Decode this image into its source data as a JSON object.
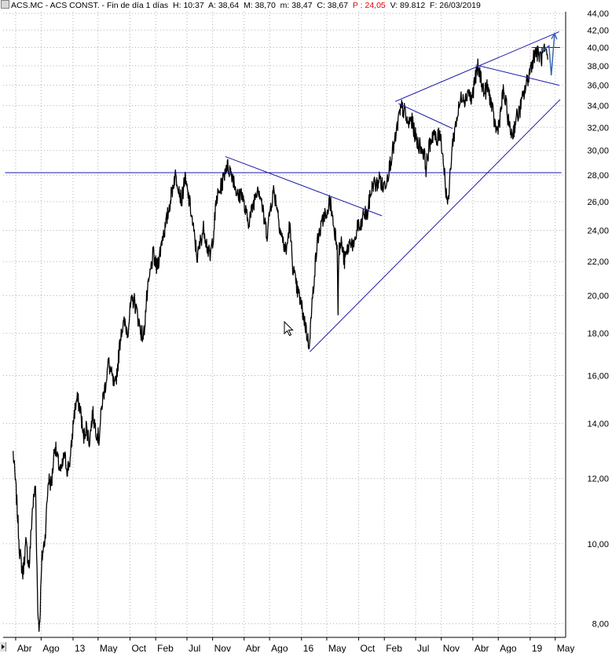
{
  "header": {
    "symbol": "ACS.MC",
    "name": "ACS CONST.",
    "period": "Fin de día 1 días",
    "h": "H: 10:37",
    "a": "A: 38,64",
    "m": "M: 38,70",
    "min": "m: 38,47",
    "c": "C: 38,67",
    "p": "P : 24,05",
    "v": "V: 89.812",
    "f": "F: 26/03/2019"
  },
  "chart_data": {
    "type": "line",
    "title": "ACS.MC - ACS CONST. - Fin de día 1 días",
    "scale": "log",
    "ylim": [
      7.7,
      44.2
    ],
    "y_ticks": [
      8,
      10,
      12,
      14,
      16,
      18,
      20,
      22,
      24,
      26,
      28,
      30,
      32,
      34,
      36,
      38,
      40,
      42,
      44
    ],
    "y_tick_labels": [
      "8,00",
      "10,00",
      "12,00",
      "14,00",
      "16,00",
      "18,00",
      "20,00",
      "22,00",
      "24,00",
      "26,00",
      "28,00",
      "30,00",
      "32,00",
      "34,00",
      "36,00",
      "38,00",
      "40,00",
      "42,00",
      "44,00"
    ],
    "x_tick_labels": [
      "Abr",
      "Ago",
      "13",
      "May",
      "Oct",
      "Feb",
      "Jul",
      "Nov",
      "Abr",
      "Ago",
      "16",
      "May",
      "Oct",
      "Feb",
      "Jul",
      "Nov",
      "Abr",
      "Ago",
      "19",
      "May"
    ],
    "x_tick_dates": [
      "2012-04-01",
      "2012-08-01",
      "2013-01-01",
      "2013-05-01",
      "2013-10-01",
      "2014-02-01",
      "2014-07-01",
      "2014-11-01",
      "2015-04-01",
      "2015-08-01",
      "2016-01-01",
      "2016-05-01",
      "2016-10-01",
      "2017-02-01",
      "2017-07-01",
      "2017-11-01",
      "2018-04-01",
      "2018-08-01",
      "2019-01-01",
      "2019-05-01"
    ],
    "grid": true,
    "series": [
      {
        "name": "ACS.MC",
        "color": "#000000",
        "points": [
          [
            "2012-03-20",
            12.9
          ],
          [
            "2012-04-05",
            11.4
          ],
          [
            "2012-04-20",
            9.8
          ],
          [
            "2012-05-05",
            9.2
          ],
          [
            "2012-05-20",
            10.0
          ],
          [
            "2012-06-05",
            9.4
          ],
          [
            "2012-06-20",
            11.0
          ],
          [
            "2012-07-05",
            11.8
          ],
          [
            "2012-07-16",
            8.3
          ],
          [
            "2012-07-24",
            7.9
          ],
          [
            "2012-08-05",
            9.6
          ],
          [
            "2012-08-20",
            10.2
          ],
          [
            "2012-09-05",
            12.0
          ],
          [
            "2012-09-20",
            11.8
          ],
          [
            "2012-10-05",
            13.2
          ],
          [
            "2012-10-20",
            12.6
          ],
          [
            "2012-11-05",
            12.2
          ],
          [
            "2012-11-20",
            12.8
          ],
          [
            "2012-12-05",
            12.3
          ],
          [
            "2012-12-20",
            12.7
          ],
          [
            "2013-01-05",
            14.3
          ],
          [
            "2013-01-20",
            15.0
          ],
          [
            "2013-02-05",
            14.6
          ],
          [
            "2013-02-20",
            13.4
          ],
          [
            "2013-03-05",
            13.9
          ],
          [
            "2013-03-20",
            13.3
          ],
          [
            "2013-04-05",
            14.4
          ],
          [
            "2013-04-20",
            13.8
          ],
          [
            "2013-05-05",
            13.4
          ],
          [
            "2013-05-20",
            14.8
          ],
          [
            "2013-06-05",
            15.6
          ],
          [
            "2013-06-20",
            16.6
          ],
          [
            "2013-07-05",
            16.0
          ],
          [
            "2013-07-20",
            15.4
          ],
          [
            "2013-08-05",
            16.6
          ],
          [
            "2013-08-20",
            18.2
          ],
          [
            "2013-09-05",
            18.5
          ],
          [
            "2013-09-20",
            18.1
          ],
          [
            "2013-10-05",
            19.5
          ],
          [
            "2013-10-20",
            19.8
          ],
          [
            "2013-11-05",
            19.0
          ],
          [
            "2013-11-20",
            18.2
          ],
          [
            "2013-12-05",
            17.8
          ],
          [
            "2013-12-20",
            19.8
          ],
          [
            "2014-01-05",
            21.2
          ],
          [
            "2014-01-20",
            22.5
          ],
          [
            "2014-02-05",
            21.6
          ],
          [
            "2014-02-20",
            22.4
          ],
          [
            "2014-03-05",
            23.6
          ],
          [
            "2014-03-20",
            24.2
          ],
          [
            "2014-04-05",
            25.5
          ],
          [
            "2014-04-20",
            26.8
          ],
          [
            "2014-05-05",
            28.0
          ],
          [
            "2014-05-20",
            27.4
          ],
          [
            "2014-06-05",
            26.0
          ],
          [
            "2014-06-20",
            27.8
          ],
          [
            "2014-07-05",
            26.6
          ],
          [
            "2014-07-20",
            25.4
          ],
          [
            "2014-08-05",
            23.6
          ],
          [
            "2014-08-20",
            22.2
          ],
          [
            "2014-09-05",
            23.4
          ],
          [
            "2014-09-20",
            24.2
          ],
          [
            "2014-10-05",
            23.0
          ],
          [
            "2014-10-20",
            22.2
          ],
          [
            "2014-11-05",
            23.8
          ],
          [
            "2014-11-20",
            26.2
          ],
          [
            "2014-12-05",
            26.8
          ],
          [
            "2014-12-20",
            27.6
          ],
          [
            "2015-01-05",
            28.8
          ],
          [
            "2015-01-20",
            28.5
          ],
          [
            "2015-02-05",
            28.0
          ],
          [
            "2015-02-20",
            27.0
          ],
          [
            "2015-03-05",
            26.2
          ],
          [
            "2015-03-20",
            26.8
          ],
          [
            "2015-04-05",
            25.4
          ],
          [
            "2015-04-20",
            24.6
          ],
          [
            "2015-05-05",
            25.2
          ],
          [
            "2015-05-20",
            26.2
          ],
          [
            "2015-06-05",
            27.2
          ],
          [
            "2015-06-20",
            26.4
          ],
          [
            "2015-07-05",
            24.8
          ],
          [
            "2015-07-20",
            23.8
          ],
          [
            "2015-08-05",
            25.6
          ],
          [
            "2015-08-20",
            26.8
          ],
          [
            "2015-09-05",
            25.8
          ],
          [
            "2015-09-20",
            24.2
          ],
          [
            "2015-10-05",
            23.2
          ],
          [
            "2015-10-20",
            22.6
          ],
          [
            "2015-11-05",
            24.4
          ],
          [
            "2015-11-20",
            21.8
          ],
          [
            "2015-12-05",
            20.6
          ],
          [
            "2015-12-20",
            20.0
          ],
          [
            "2016-01-05",
            19.2
          ],
          [
            "2016-01-20",
            18.4
          ],
          [
            "2016-02-05",
            17.4
          ],
          [
            "2016-02-15",
            18.6
          ],
          [
            "2016-02-25",
            20.2
          ],
          [
            "2016-03-05",
            21.6
          ],
          [
            "2016-03-20",
            23.6
          ],
          [
            "2016-04-05",
            24.2
          ],
          [
            "2016-04-20",
            25.2
          ],
          [
            "2016-05-01",
            24.6
          ],
          [
            "2016-05-10",
            26.0
          ],
          [
            "2016-05-20",
            25.8
          ],
          [
            "2016-06-05",
            24.2
          ],
          [
            "2016-06-20",
            23.2
          ],
          [
            "2016-06-24",
            19.4
          ],
          [
            "2016-06-28",
            22.6
          ],
          [
            "2016-07-10",
            23.2
          ],
          [
            "2016-07-25",
            22.0
          ],
          [
            "2016-08-10",
            22.8
          ],
          [
            "2016-08-25",
            23.4
          ],
          [
            "2016-09-10",
            22.8
          ],
          [
            "2016-09-25",
            24.4
          ],
          [
            "2016-10-10",
            24.0
          ],
          [
            "2016-10-25",
            25.2
          ],
          [
            "2016-11-10",
            25.0
          ],
          [
            "2016-11-25",
            26.4
          ],
          [
            "2016-12-10",
            27.4
          ],
          [
            "2016-12-25",
            27.2
          ],
          [
            "2017-01-10",
            27.8
          ],
          [
            "2017-01-25",
            27.0
          ],
          [
            "2017-02-10",
            27.6
          ],
          [
            "2017-02-25",
            28.6
          ],
          [
            "2017-03-10",
            29.8
          ],
          [
            "2017-03-25",
            30.8
          ],
          [
            "2017-04-10",
            32.8
          ],
          [
            "2017-04-25",
            33.8
          ],
          [
            "2017-05-10",
            33.4
          ],
          [
            "2017-05-25",
            32.2
          ],
          [
            "2017-06-10",
            32.8
          ],
          [
            "2017-06-25",
            31.6
          ],
          [
            "2017-07-10",
            30.6
          ],
          [
            "2017-07-25",
            30.4
          ],
          [
            "2017-08-10",
            29.8
          ],
          [
            "2017-08-20",
            28.6
          ],
          [
            "2017-08-30",
            29.8
          ],
          [
            "2017-09-10",
            30.8
          ],
          [
            "2017-09-25",
            31.6
          ],
          [
            "2017-10-10",
            30.6
          ],
          [
            "2017-10-25",
            31.8
          ],
          [
            "2017-11-05",
            30.2
          ],
          [
            "2017-11-15",
            28.4
          ],
          [
            "2017-11-25",
            26.6
          ],
          [
            "2017-12-05",
            25.8
          ],
          [
            "2017-12-15",
            28.6
          ],
          [
            "2017-12-25",
            30.6
          ],
          [
            "2018-01-10",
            32.4
          ],
          [
            "2018-01-25",
            33.8
          ],
          [
            "2018-02-10",
            35.2
          ],
          [
            "2018-02-25",
            34.6
          ],
          [
            "2018-03-10",
            35.6
          ],
          [
            "2018-03-25",
            34.4
          ],
          [
            "2018-04-10",
            36.4
          ],
          [
            "2018-04-25",
            37.8
          ],
          [
            "2018-05-10",
            36.8
          ],
          [
            "2018-05-25",
            35.2
          ],
          [
            "2018-06-10",
            35.8
          ],
          [
            "2018-06-25",
            34.6
          ],
          [
            "2018-07-10",
            32.8
          ],
          [
            "2018-07-25",
            31.6
          ],
          [
            "2018-08-10",
            33.0
          ],
          [
            "2018-08-25",
            35.4
          ],
          [
            "2018-09-10",
            33.8
          ],
          [
            "2018-09-25",
            31.8
          ],
          [
            "2018-10-10",
            31.4
          ],
          [
            "2018-10-25",
            32.8
          ],
          [
            "2018-11-10",
            33.4
          ],
          [
            "2018-11-25",
            34.6
          ],
          [
            "2018-12-10",
            35.8
          ],
          [
            "2018-12-25",
            37.0
          ],
          [
            "2019-01-10",
            38.4
          ],
          [
            "2019-01-25",
            39.6
          ],
          [
            "2019-02-10",
            39.2
          ],
          [
            "2019-02-25",
            38.9
          ],
          [
            "2019-03-10",
            39.5
          ],
          [
            "2019-03-26",
            38.67
          ]
        ]
      }
    ],
    "trendlines": [
      {
        "from": [
          "2012-02-10",
          28.2
        ],
        "to": [
          "2013-01-10",
          28.2
        ]
      },
      {
        "from": [
          "2013-01-10",
          28.2
        ],
        "to": [
          "2019-05-31",
          28.2
        ]
      },
      {
        "from": [
          "2015-01-01",
          29.5
        ],
        "to": [
          "2017-01-20",
          25.0
        ]
      },
      {
        "from": [
          "2016-02-10",
          17.1
        ],
        "to": [
          "2019-05-25",
          34.6
        ]
      },
      {
        "from": [
          "2017-03-25",
          34.4
        ],
        "to": [
          "2019-05-20",
          41.8
        ]
      },
      {
        "from": [
          "2017-04-10",
          34.2
        ],
        "to": [
          "2017-12-25",
          31.9
        ]
      },
      {
        "from": [
          "2018-04-15",
          38.1
        ],
        "to": [
          "2019-05-20",
          36.0
        ]
      },
      {
        "from": [
          "2019-01-10",
          40.0
        ],
        "to": [
          "2019-05-25",
          40.0
        ]
      }
    ],
    "projection": {
      "color": "#3a66b0",
      "points": [
        [
          "2019-02-25",
          39.6
        ],
        [
          "2019-04-01",
          40.2
        ],
        [
          "2019-04-12",
          37.0
        ],
        [
          "2019-04-28",
          41.6
        ]
      ]
    }
  }
}
